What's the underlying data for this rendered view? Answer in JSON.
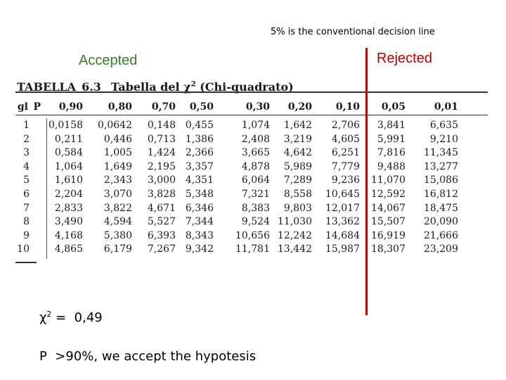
{
  "decision_note": "5% is the conventional decision line",
  "accepted_label": "Accepted",
  "rejected_label": "Rejected",
  "table": {
    "title_prefix": "TABELLA",
    "title_number": "6.3",
    "title_name": "Tabella del",
    "title_symbol": "χ",
    "title_exp": "2",
    "title_paren": "(Chi-quadrato)",
    "gl_label": "gl",
    "p_label": "P",
    "p_values": [
      "0,90",
      "0,80",
      "0,70",
      "0,50",
      "0,30",
      "0,20",
      "0,10",
      "0,05",
      "0,01"
    ],
    "rows": [
      {
        "gl": "1",
        "values": [
          "0,0158",
          "0,0642",
          "0,148",
          "0,455",
          "1,074",
          "1,642",
          "2,706",
          "3,841",
          "6,635"
        ]
      },
      {
        "gl": "2",
        "values": [
          "0,211",
          "0,446",
          "0,713",
          "1,386",
          "2,408",
          "3,219",
          "4,605",
          "5,991",
          "9,210"
        ]
      },
      {
        "gl": "3",
        "values": [
          "0,584",
          "1,005",
          "1,424",
          "2,366",
          "3,665",
          "4,642",
          "6,251",
          "7,816",
          "11,345"
        ]
      },
      {
        "gl": "4",
        "values": [
          "1,064",
          "1,649",
          "2,195",
          "3,357",
          "4,878",
          "5,989",
          "7,779",
          "9,488",
          "13,277"
        ]
      },
      {
        "gl": "5",
        "values": [
          "1,610",
          "2,343",
          "3,000",
          "4,351",
          "6,064",
          "7,289",
          "9,236",
          "11,070",
          "15,086"
        ]
      },
      {
        "gl": "6",
        "values": [
          "2,204",
          "3,070",
          "3,828",
          "5,348",
          "7,321",
          "8,558",
          "10,645",
          "12,592",
          "16,812"
        ]
      },
      {
        "gl": "7",
        "values": [
          "2,833",
          "3,822",
          "4,671",
          "6,346",
          "8,383",
          "9,803",
          "12,017",
          "14,067",
          "18,475"
        ]
      },
      {
        "gl": "8",
        "values": [
          "3,490",
          "4,594",
          "5,527",
          "7,344",
          "9,524",
          "11,030",
          "13,362",
          "15,507",
          "20,090"
        ]
      },
      {
        "gl": "9",
        "values": [
          "4,168",
          "5,380",
          "6,393",
          "8,343",
          "10,656",
          "12,242",
          "14,684",
          "16,919",
          "21,666"
        ]
      },
      {
        "gl": "10",
        "values": [
          "4,865",
          "6,179",
          "7,267",
          "9,342",
          "11,781",
          "13,442",
          "15,987",
          "18,307",
          "23,209"
        ]
      }
    ]
  },
  "chi_result": {
    "symbol": "χ",
    "exp": "2",
    "text": " =  0,49"
  },
  "conclusion": "P  >90%, we accept the hypotesis",
  "colors": {
    "accepted": "#3a7d2c",
    "rejected": "#c00000",
    "decision_line": "#cc0000"
  }
}
